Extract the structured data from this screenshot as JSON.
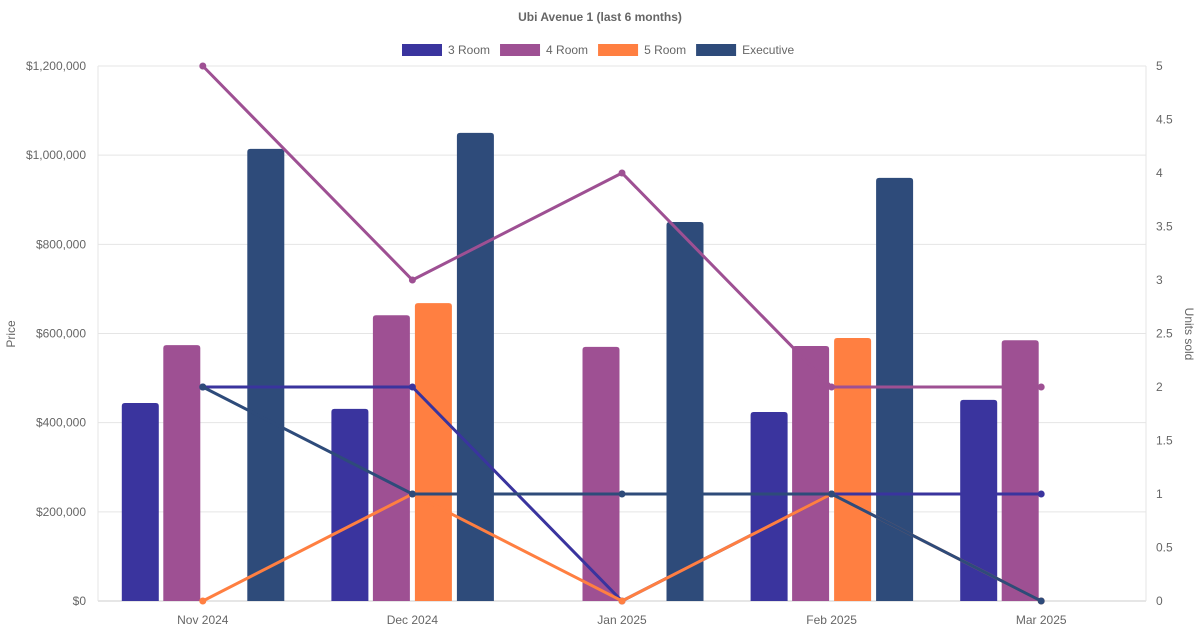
{
  "chart_data": {
    "type": "bar",
    "title": "Ubi Avenue 1 (last 6 months)",
    "categories": [
      "Nov 2024",
      "Dec 2024",
      "Jan 2025",
      "Feb 2025",
      "Mar 2025"
    ],
    "ylabel": "Price",
    "y2label": "Units sold",
    "ylim": [
      0,
      1200000
    ],
    "y2lim": [
      0,
      5
    ],
    "yticks": [
      "$0",
      "$200,000",
      "$400,000",
      "$600,000",
      "$800,000",
      "$1,000,000",
      "$1,200,000"
    ],
    "y2ticks": [
      "0",
      "0.5",
      "1",
      "1.5",
      "2",
      "2.5",
      "3",
      "3.5",
      "4",
      "4.5",
      "5"
    ],
    "grid": true,
    "legend_position": "top",
    "series": [
      {
        "name": "3 Room",
        "color": "#3a349e",
        "price": [
          444000,
          431000,
          null,
          424000,
          451000
        ],
        "units": [
          2,
          2,
          0,
          1,
          1
        ]
      },
      {
        "name": "4 Room",
        "color": "#9e5093",
        "price": [
          574000,
          641000,
          570000,
          572000,
          585000
        ],
        "units": [
          5,
          3,
          4,
          2,
          2
        ]
      },
      {
        "name": "5 Room",
        "color": "#ff7f41",
        "price": [
          null,
          668000,
          null,
          590000,
          null
        ],
        "units": [
          0,
          1,
          0,
          1,
          0
        ]
      },
      {
        "name": "Executive",
        "color": "#2e4b7a",
        "price": [
          1014000,
          1050000,
          850000,
          949000,
          null
        ],
        "units": [
          2,
          1,
          1,
          1,
          0
        ]
      }
    ]
  }
}
